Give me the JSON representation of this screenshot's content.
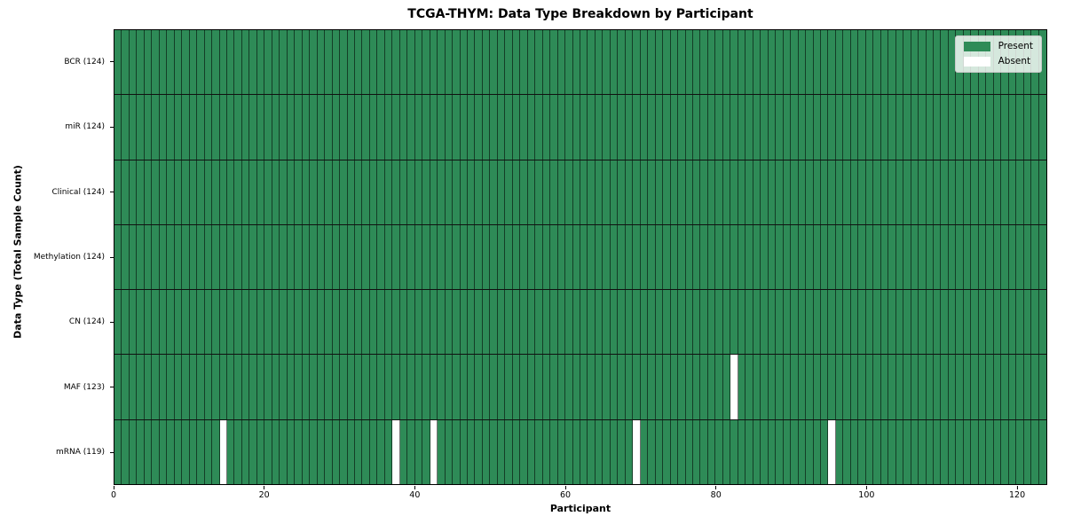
{
  "chart_data": {
    "type": "heatmap",
    "title": "TCGA-THYM: Data Type Breakdown by Participant",
    "xlabel": "Participant",
    "ylabel": "Data Type (Total Sample Count)",
    "n_participants": 124,
    "x_range": [
      0,
      124
    ],
    "x_ticks": [
      0,
      20,
      40,
      60,
      80,
      100,
      120
    ],
    "grid": true,
    "legend_position": "upper right",
    "rows": [
      {
        "label": "BCR (124)",
        "data_type": "BCR",
        "present_count": 124,
        "absent_participants": []
      },
      {
        "label": "miR (124)",
        "data_type": "miR",
        "present_count": 124,
        "absent_participants": []
      },
      {
        "label": "Clinical (124)",
        "data_type": "Clinical",
        "present_count": 124,
        "absent_participants": []
      },
      {
        "label": "Methylation (124)",
        "data_type": "Methylation",
        "present_count": 124,
        "absent_participants": []
      },
      {
        "label": "CN (124)",
        "data_type": "CN",
        "present_count": 124,
        "absent_participants": []
      },
      {
        "label": "MAF (123)",
        "data_type": "MAF",
        "present_count": 123,
        "absent_participants": [
          82
        ]
      },
      {
        "label": "mRNA (119)",
        "data_type": "mRNA",
        "present_count": 119,
        "absent_participants": [
          14,
          37,
          42,
          69,
          95
        ]
      }
    ],
    "legend": [
      {
        "label": "Present",
        "color": "#2e8b57"
      },
      {
        "label": "Absent",
        "color": "#ffffff"
      }
    ],
    "colors": {
      "present": "#2e8b57",
      "absent": "#ffffff",
      "cell_border": "rgba(0,0,0,0.55)",
      "row_border": "#111111",
      "spine": "#000000",
      "text": "#000000"
    }
  }
}
